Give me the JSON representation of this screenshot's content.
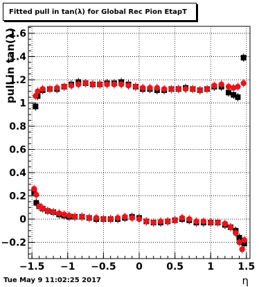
{
  "chart_data": {
    "type": "scatter",
    "title": "Fitted pull in tan(λ) for Global Rec Pion EtapT",
    "xlabel": "η",
    "ylabel": "pull in tan(λ)",
    "xlim": [
      -1.55,
      1.55
    ],
    "ylim": [
      -0.34,
      1.66
    ],
    "x_ticks": [
      -1.5,
      -1,
      -0.5,
      0,
      0.5,
      1,
      1.5
    ],
    "x_tick_labels": [
      "−1.5",
      "−1",
      "−0.5",
      "0",
      "0.5",
      "1",
      "1.5"
    ],
    "y_ticks": [
      -0.2,
      0,
      0.2,
      0.4,
      0.6,
      0.8,
      1,
      1.2,
      1.4,
      1.6
    ],
    "y_tick_labels": [
      "−0.2",
      "0",
      "0.2",
      "0.4",
      "0.6",
      "0.8",
      "1",
      "1.2",
      "1.4",
      "1.6"
    ],
    "grid": true,
    "series": [
      {
        "marker": "square",
        "color": "#000000",
        "x": [
          -1.45,
          -1.42,
          -1.35,
          -1.25,
          -1.15,
          -1.05,
          -0.95,
          -0.85,
          -0.75,
          -0.65,
          -0.55,
          -0.45,
          -0.35,
          -0.25,
          -0.15,
          -0.05,
          0.05,
          0.15,
          0.25,
          0.35,
          0.45,
          0.55,
          0.65,
          0.75,
          0.85,
          0.95,
          1.05,
          1.15,
          1.25,
          1.32,
          1.38,
          1.46
        ],
        "y": [
          0.97,
          1.06,
          1.11,
          1.12,
          1.12,
          1.14,
          1.16,
          1.18,
          1.17,
          1.16,
          1.16,
          1.17,
          1.17,
          1.18,
          1.16,
          1.14,
          1.12,
          1.12,
          1.11,
          1.11,
          1.12,
          1.12,
          1.13,
          1.12,
          1.11,
          1.12,
          1.14,
          1.14,
          1.09,
          1.07,
          1.05,
          1.39
        ]
      },
      {
        "marker": "circle",
        "color": "#e8141a",
        "x": [
          -1.45,
          -1.42,
          -1.35,
          -1.25,
          -1.15,
          -1.05,
          -0.95,
          -0.85,
          -0.75,
          -0.65,
          -0.55,
          -0.45,
          -0.35,
          -0.25,
          -0.15,
          -0.05,
          0.05,
          0.15,
          0.25,
          0.35,
          0.45,
          0.55,
          0.65,
          0.75,
          0.85,
          0.95,
          1.05,
          1.15,
          1.25,
          1.32,
          1.38,
          1.46
        ],
        "y": [
          1.06,
          1.1,
          1.12,
          1.12,
          1.13,
          1.14,
          1.15,
          1.16,
          1.17,
          1.16,
          1.16,
          1.16,
          1.16,
          1.16,
          1.15,
          1.14,
          1.13,
          1.13,
          1.13,
          1.12,
          1.12,
          1.12,
          1.12,
          1.12,
          1.11,
          1.12,
          1.15,
          1.16,
          1.14,
          1.13,
          1.14,
          1.17
        ]
      },
      {
        "marker": "square",
        "color": "#000000",
        "x": [
          -1.47,
          -1.44,
          -1.4,
          -1.35,
          -1.28,
          -1.2,
          -1.12,
          -1.05,
          -0.98,
          -0.9,
          -0.8,
          -0.7,
          -0.6,
          -0.5,
          -0.4,
          -0.3,
          -0.2,
          -0.1,
          0.0,
          0.1,
          0.2,
          0.3,
          0.4,
          0.5,
          0.6,
          0.7,
          0.8,
          0.9,
          1.0,
          1.1,
          1.2,
          1.28,
          1.35,
          1.4,
          1.44,
          1.47
        ],
        "y": [
          0.23,
          0.14,
          0.11,
          0.09,
          0.07,
          0.06,
          0.04,
          0.03,
          0.02,
          0.02,
          0.02,
          0.01,
          0.0,
          0.0,
          0.0,
          0.0,
          0.01,
          0.02,
          0.01,
          -0.02,
          -0.03,
          -0.03,
          -0.02,
          -0.01,
          0.0,
          -0.01,
          -0.03,
          -0.03,
          -0.03,
          -0.03,
          -0.05,
          -0.07,
          -0.1,
          -0.16,
          -0.2,
          -0.21
        ]
      },
      {
        "marker": "circle",
        "color": "#e8141a",
        "x": [
          -1.47,
          -1.44,
          -1.4,
          -1.35,
          -1.28,
          -1.2,
          -1.12,
          -1.05,
          -0.98,
          -0.9,
          -0.8,
          -0.7,
          -0.6,
          -0.5,
          -0.4,
          -0.3,
          -0.2,
          -0.1,
          0.0,
          0.1,
          0.2,
          0.3,
          0.4,
          0.5,
          0.6,
          0.7,
          0.8,
          0.9,
          1.0,
          1.1,
          1.2,
          1.28,
          1.35,
          1.4,
          1.44,
          1.47
        ],
        "y": [
          0.26,
          0.21,
          0.11,
          0.09,
          0.07,
          0.06,
          0.05,
          0.04,
          0.03,
          0.02,
          0.02,
          0.01,
          0.01,
          0.0,
          0.0,
          0.01,
          0.02,
          0.01,
          0.0,
          -0.02,
          -0.03,
          -0.02,
          -0.02,
          -0.01,
          0.01,
          0.0,
          -0.02,
          -0.02,
          -0.03,
          -0.03,
          -0.04,
          -0.07,
          -0.12,
          -0.2,
          -0.26,
          -0.18
        ]
      }
    ]
  },
  "footer_text": "Tue May  9 11:02:25 2017"
}
